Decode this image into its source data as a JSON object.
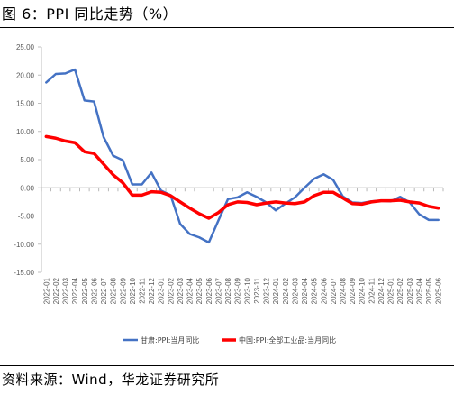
{
  "figure_title": "图 6：PPI 同比走势（%）",
  "source_note": "资料来源：Wind，华龙证券研究所",
  "colors": {
    "gansu": "#4472C4",
    "china": "#FF0000",
    "axis": "#BFBFBF",
    "tick_text": "#595959"
  },
  "chart_data": {
    "type": "line",
    "title": "",
    "xlabel": "",
    "ylabel": "",
    "ylim": [
      -15,
      25
    ],
    "y_ticks": [
      "25.00",
      "20.00",
      "15.00",
      "10.00",
      "5.00",
      "0.00",
      "-5.00",
      "-10.00",
      "-15.00"
    ],
    "grid": false,
    "legend_position": "bottom",
    "categories": [
      "2022-01",
      "2022-02",
      "2022-03",
      "2022-04",
      "2022-05",
      "2022-06",
      "2022-07",
      "2022-08",
      "2022-09",
      "2022-10",
      "2022-11",
      "2022-12",
      "2023-01",
      "2023-02",
      "2023-03",
      "2023-04",
      "2023-05",
      "2023-06",
      "2023-07",
      "2023-08",
      "2023-09",
      "2023-10",
      "2023-11",
      "2023-12",
      "2024-01",
      "2024-02",
      "2024-03",
      "2024-04",
      "2024-05",
      "2024-06",
      "2024-07",
      "2024-08",
      "2024-09",
      "2024-10",
      "2024-11",
      "2024-12",
      "2025-01",
      "2025-02",
      "2025-03",
      "2025-04",
      "2025-05",
      "2025-06"
    ],
    "series": [
      {
        "name": "甘肃:PPI:当月同比",
        "values": [
          18.7,
          20.2,
          20.3,
          21.0,
          15.5,
          15.3,
          9.0,
          5.7,
          4.9,
          0.6,
          0.6,
          2.7,
          -0.5,
          -1.3,
          -6.4,
          -8.2,
          -8.8,
          -9.7,
          -5.8,
          -2.0,
          -1.7,
          -0.8,
          -1.6,
          -2.6,
          -4.0,
          -2.8,
          -1.7,
          0.0,
          1.6,
          2.4,
          1.4,
          -1.5,
          -2.6,
          -2.7,
          -2.4,
          -2.3,
          -2.4,
          -1.6,
          -2.6,
          -4.7,
          -5.7,
          -5.7
        ]
      },
      {
        "name": "中国:PPI:全部工业品:当月同比",
        "values": [
          9.1,
          8.8,
          8.3,
          8.0,
          6.4,
          6.1,
          4.2,
          2.3,
          0.9,
          -1.3,
          -1.3,
          -0.7,
          -0.8,
          -1.4,
          -2.5,
          -3.6,
          -4.6,
          -5.4,
          -4.4,
          -3.0,
          -2.5,
          -2.6,
          -3.0,
          -2.7,
          -2.5,
          -2.7,
          -2.8,
          -2.5,
          -1.4,
          -0.8,
          -0.8,
          -1.8,
          -2.8,
          -2.9,
          -2.5,
          -2.3,
          -2.3,
          -2.2,
          -2.5,
          -2.7,
          -3.3,
          -3.6
        ]
      }
    ]
  }
}
